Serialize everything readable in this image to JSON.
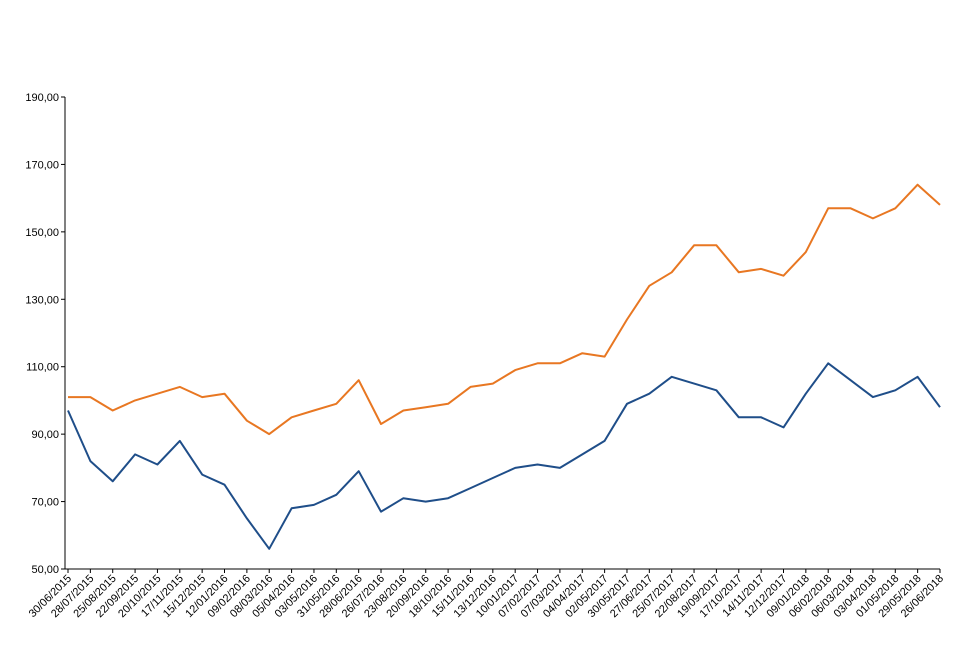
{
  "chart_data": {
    "type": "line",
    "categories": [
      "30/06/2015",
      "28/07/2015",
      "25/08/2015",
      "22/09/2015",
      "20/10/2015",
      "17/11/2015",
      "15/12/2015",
      "12/01/2016",
      "09/02/2016",
      "08/03/2016",
      "05/04/2016",
      "03/05/2016",
      "31/05/2016",
      "28/06/2016",
      "26/07/2016",
      "23/08/2016",
      "20/09/2016",
      "18/10/2016",
      "15/11/2016",
      "13/12/2016",
      "10/01/2017",
      "07/02/2017",
      "07/03/2017",
      "04/04/2017",
      "02/05/2017",
      "30/05/2017",
      "27/06/2017",
      "25/07/2017",
      "22/08/2017",
      "19/09/2017",
      "17/10/2017",
      "14/11/2017",
      "12/12/2017",
      "09/01/2018",
      "06/02/2018",
      "06/03/2018",
      "03/04/2018",
      "01/05/2018",
      "29/05/2018",
      "26/06/2018"
    ],
    "series": [
      {
        "color": "#e87722",
        "values": [
          101,
          101,
          97,
          100,
          102,
          104,
          101,
          102,
          94,
          90,
          95,
          97,
          99,
          106,
          93,
          97,
          98,
          99,
          104,
          105,
          109,
          111,
          111,
          114,
          113,
          124,
          134,
          138,
          146,
          146,
          138,
          139,
          137,
          144,
          157,
          157,
          154,
          157,
          164,
          158
        ]
      },
      {
        "color": "#1f4e89",
        "values": [
          97,
          82,
          76,
          84,
          81,
          88,
          78,
          75,
          65,
          56,
          68,
          69,
          72,
          79,
          67,
          71,
          70,
          71,
          74,
          77,
          80,
          81,
          80,
          84,
          88,
          99,
          102,
          107,
          105,
          103,
          95,
          95,
          92,
          102,
          111,
          106,
          101,
          103,
          107,
          98
        ]
      }
    ],
    "ylim": [
      50,
      190
    ],
    "yticks": [
      {
        "value": 50,
        "label": "50,00"
      },
      {
        "value": 70,
        "label": "70,00"
      },
      {
        "value": 90,
        "label": "90,00"
      },
      {
        "value": 110,
        "label": "110,00"
      },
      {
        "value": 130,
        "label": "130,00"
      },
      {
        "value": 150,
        "label": "150,00"
      },
      {
        "value": 170,
        "label": "170,00"
      },
      {
        "value": 190,
        "label": "190,00"
      }
    ]
  }
}
